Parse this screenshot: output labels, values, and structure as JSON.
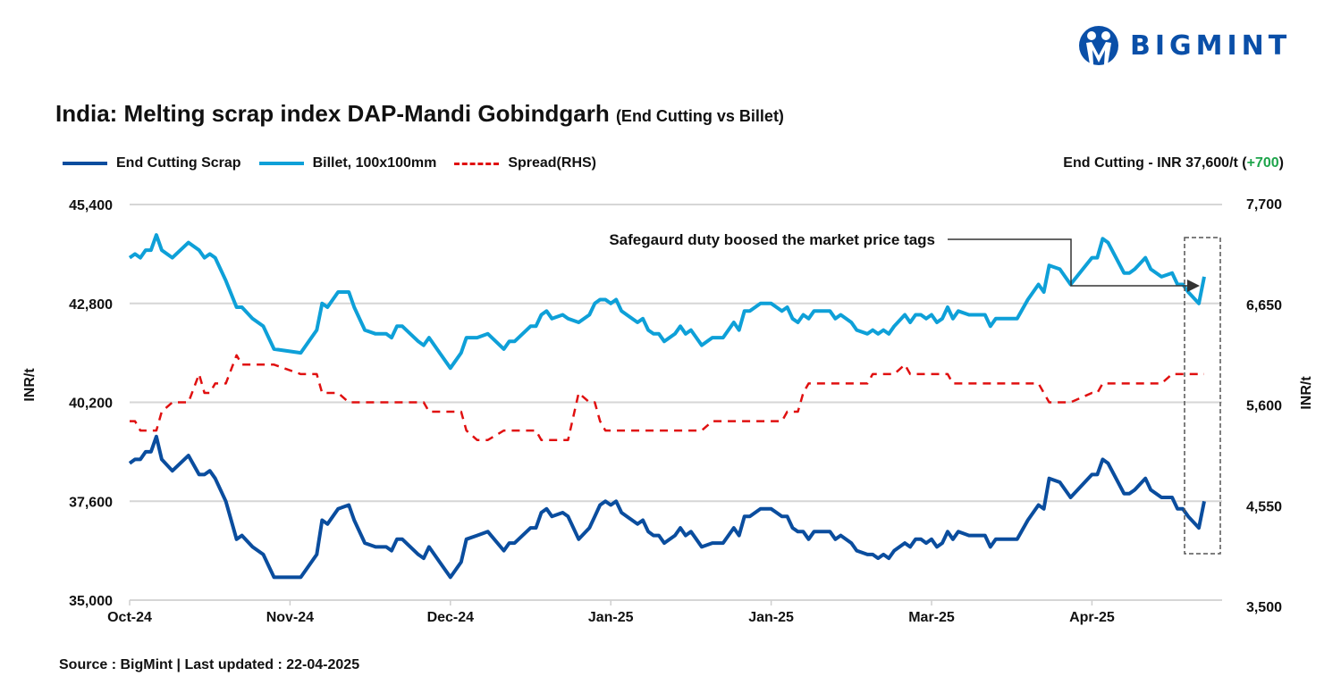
{
  "logo": {
    "text": "BIGMINT",
    "color": "#0a4fa8"
  },
  "header": {
    "title": "India: Melting scrap index DAP-Mandi Gobindgarh",
    "subtitle": "(End Cutting vs Billet)",
    "latest_prefix": "End Cutting - INR 37,600/t (",
    "latest_change": "+700",
    "latest_suffix": ")",
    "change_color": "#1ea44b"
  },
  "footer": {
    "source": "Source : BigMint | Last updated : 22-04-2025"
  },
  "chart_data": {
    "type": "line",
    "title": "India: Melting scrap index DAP-Mandi Gobindgarh (End Cutting vs Billet)",
    "ylabel": "INR/t",
    "y2label": "INR/t",
    "ylim": [
      35000,
      45400
    ],
    "y2lim": [
      3500,
      7700
    ],
    "yticks": [
      "35,000",
      "37,600",
      "40,200",
      "42,800",
      "45,400"
    ],
    "y2ticks": [
      "3,500",
      "4,550",
      "5,600",
      "6,650",
      "7,700"
    ],
    "xlim": [
      "2024-10-03",
      "2025-04-22"
    ],
    "xticks": [
      {
        "label": "Oct-24",
        "date": "2024-10-03"
      },
      {
        "label": "Nov-24",
        "date": "2024-11-02"
      },
      {
        "label": "Dec-24",
        "date": "2024-12-02"
      },
      {
        "label": "Jan-25",
        "date": "2025-01-01"
      },
      {
        "label": "Jan-25",
        "date": "2025-01-31"
      },
      {
        "label": "Mar-25",
        "date": "2025-03-02"
      },
      {
        "label": "Apr-25",
        "date": "2025-04-01"
      }
    ],
    "grid": "horizontal",
    "legend_position": "top-left",
    "series": [
      {
        "name": "End Cutting Scrap",
        "color": "#0a4d9e",
        "axis": "left",
        "style": "solid"
      },
      {
        "name": "Billet, 100x100mm",
        "color": "#0ea0d8",
        "axis": "left",
        "style": "solid"
      },
      {
        "name": "Spread(RHS)",
        "color": "#e01010",
        "axis": "right",
        "style": "dashed"
      }
    ],
    "columns": [
      "date",
      "End Cutting Scrap",
      "Billet, 100x100mm",
      "Spread(RHS)"
    ],
    "rows": [
      [
        "2024-10-03",
        38600,
        44000,
        5400
      ],
      [
        "2024-10-04",
        38700,
        44100,
        5400
      ],
      [
        "2024-10-05",
        38700,
        44000,
        5300
      ],
      [
        "2024-10-06",
        38900,
        44200,
        5300
      ],
      [
        "2024-10-07",
        38900,
        44200,
        5300
      ],
      [
        "2024-10-08",
        39300,
        44600,
        5300
      ],
      [
        "2024-10-09",
        38700,
        44200,
        5500
      ],
      [
        "2024-10-11",
        38400,
        44000,
        5600
      ],
      [
        "2024-10-14",
        38800,
        44400,
        5600
      ],
      [
        "2024-10-16",
        38300,
        44200,
        5900
      ],
      [
        "2024-10-17",
        38300,
        44000,
        5700
      ],
      [
        "2024-10-18",
        38400,
        44100,
        5700
      ],
      [
        "2024-10-19",
        38200,
        44000,
        5800
      ],
      [
        "2024-10-21",
        37600,
        43400,
        5800
      ],
      [
        "2024-10-23",
        36600,
        42700,
        6100
      ],
      [
        "2024-10-24",
        36700,
        42700,
        6000
      ],
      [
        "2024-10-26",
        36400,
        42400,
        6000
      ],
      [
        "2024-10-28",
        36200,
        42200,
        6000
      ],
      [
        "2024-10-30",
        35600,
        41600,
        6000
      ],
      [
        "2024-11-04",
        35600,
        41500,
        5900
      ],
      [
        "2024-11-07",
        36200,
        42100,
        5900
      ],
      [
        "2024-11-08",
        37100,
        42800,
        5700
      ],
      [
        "2024-11-09",
        37000,
        42700,
        5700
      ],
      [
        "2024-11-11",
        37400,
        43100,
        5700
      ],
      [
        "2024-11-13",
        37500,
        43100,
        5600
      ],
      [
        "2024-11-14",
        37100,
        42700,
        5600
      ],
      [
        "2024-11-16",
        36500,
        42100,
        5600
      ],
      [
        "2024-11-18",
        36400,
        42000,
        5600
      ],
      [
        "2024-11-20",
        36400,
        42000,
        5600
      ],
      [
        "2024-11-21",
        36300,
        41900,
        5600
      ],
      [
        "2024-11-22",
        36600,
        42200,
        5600
      ],
      [
        "2024-11-23",
        36600,
        42200,
        5600
      ],
      [
        "2024-11-26",
        36200,
        41800,
        5600
      ],
      [
        "2024-11-27",
        36100,
        41700,
        5600
      ],
      [
        "2024-11-28",
        36400,
        41900,
        5500
      ],
      [
        "2024-11-30",
        36000,
        41500,
        5500
      ],
      [
        "2024-12-02",
        35600,
        41100,
        5500
      ],
      [
        "2024-12-04",
        36000,
        41500,
        5500
      ],
      [
        "2024-12-05",
        36600,
        41900,
        5300
      ],
      [
        "2024-12-07",
        36700,
        41900,
        5200
      ],
      [
        "2024-12-09",
        36800,
        42000,
        5200
      ],
      [
        "2024-12-12",
        36300,
        41600,
        5300
      ],
      [
        "2024-12-13",
        36500,
        41800,
        5300
      ],
      [
        "2024-12-14",
        36500,
        41800,
        5300
      ],
      [
        "2024-12-17",
        36900,
        42200,
        5300
      ],
      [
        "2024-12-18",
        36900,
        42200,
        5300
      ],
      [
        "2024-12-19",
        37300,
        42500,
        5200
      ],
      [
        "2024-12-20",
        37400,
        42600,
        5200
      ],
      [
        "2024-12-21",
        37200,
        42400,
        5200
      ],
      [
        "2024-12-23",
        37300,
        42500,
        5200
      ],
      [
        "2024-12-24",
        37200,
        42400,
        5200
      ],
      [
        "2024-12-26",
        36600,
        42300,
        5700
      ],
      [
        "2024-12-28",
        36900,
        42500,
        5600
      ],
      [
        "2024-12-29",
        37200,
        42800,
        5600
      ],
      [
        "2024-12-30",
        37500,
        42900,
        5400
      ],
      [
        "2024-12-31",
        37600,
        42900,
        5300
      ],
      [
        "2025-01-01",
        37500,
        42800,
        5300
      ],
      [
        "2025-01-02",
        37600,
        42900,
        5300
      ],
      [
        "2025-01-03",
        37300,
        42600,
        5300
      ],
      [
        "2025-01-04",
        37200,
        42500,
        5300
      ],
      [
        "2025-01-06",
        37000,
        42300,
        5300
      ],
      [
        "2025-01-07",
        37100,
        42400,
        5300
      ],
      [
        "2025-01-08",
        36800,
        42100,
        5300
      ],
      [
        "2025-01-09",
        36700,
        42000,
        5300
      ],
      [
        "2025-01-10",
        36700,
        42000,
        5300
      ],
      [
        "2025-01-11",
        36500,
        41800,
        5300
      ],
      [
        "2025-01-13",
        36700,
        42000,
        5300
      ],
      [
        "2025-01-14",
        36900,
        42200,
        5300
      ],
      [
        "2025-01-15",
        36700,
        42000,
        5300
      ],
      [
        "2025-01-16",
        36800,
        42100,
        5300
      ],
      [
        "2025-01-17",
        36600,
        41900,
        5300
      ],
      [
        "2025-01-18",
        36400,
        41700,
        5300
      ],
      [
        "2025-01-20",
        36500,
        41900,
        5400
      ],
      [
        "2025-01-22",
        36500,
        41900,
        5400
      ],
      [
        "2025-01-24",
        36900,
        42300,
        5400
      ],
      [
        "2025-01-25",
        36700,
        42100,
        5400
      ],
      [
        "2025-01-26",
        37200,
        42600,
        5400
      ],
      [
        "2025-01-27",
        37200,
        42600,
        5400
      ],
      [
        "2025-01-29",
        37400,
        42800,
        5400
      ],
      [
        "2025-01-31",
        37400,
        42800,
        5400
      ],
      [
        "2025-02-01",
        37300,
        42700,
        5400
      ],
      [
        "2025-02-02",
        37200,
        42600,
        5400
      ],
      [
        "2025-02-03",
        37200,
        42700,
        5500
      ],
      [
        "2025-02-04",
        36900,
        42400,
        5500
      ],
      [
        "2025-02-05",
        36800,
        42300,
        5500
      ],
      [
        "2025-02-06",
        36800,
        42500,
        5700
      ],
      [
        "2025-02-07",
        36600,
        42400,
        5800
      ],
      [
        "2025-02-08",
        36800,
        42600,
        5800
      ],
      [
        "2025-02-11",
        36800,
        42600,
        5800
      ],
      [
        "2025-02-12",
        36600,
        42400,
        5800
      ],
      [
        "2025-02-13",
        36700,
        42500,
        5800
      ],
      [
        "2025-02-15",
        36500,
        42300,
        5800
      ],
      [
        "2025-02-16",
        36300,
        42100,
        5800
      ],
      [
        "2025-02-18",
        36200,
        42000,
        5800
      ],
      [
        "2025-02-19",
        36200,
        42100,
        5900
      ],
      [
        "2025-02-20",
        36100,
        42000,
        5900
      ],
      [
        "2025-02-21",
        36200,
        42100,
        5900
      ],
      [
        "2025-02-22",
        36100,
        42000,
        5900
      ],
      [
        "2025-02-23",
        36300,
        42200,
        5900
      ],
      [
        "2025-02-25",
        36500,
        42500,
        6000
      ],
      [
        "2025-02-26",
        36400,
        42300,
        5900
      ],
      [
        "2025-02-27",
        36600,
        42500,
        5900
      ],
      [
        "2025-02-28",
        36600,
        42500,
        5900
      ],
      [
        "2025-03-01",
        36500,
        42400,
        5900
      ],
      [
        "2025-03-02",
        36600,
        42500,
        5900
      ],
      [
        "2025-03-03",
        36400,
        42300,
        5900
      ],
      [
        "2025-03-04",
        36500,
        42400,
        5900
      ],
      [
        "2025-03-05",
        36800,
        42700,
        5900
      ],
      [
        "2025-03-06",
        36600,
        42400,
        5800
      ],
      [
        "2025-03-07",
        36800,
        42600,
        5800
      ],
      [
        "2025-03-09",
        36700,
        42500,
        5800
      ],
      [
        "2025-03-11",
        36700,
        42500,
        5800
      ],
      [
        "2025-03-12",
        36700,
        42500,
        5800
      ],
      [
        "2025-03-13",
        36400,
        42200,
        5800
      ],
      [
        "2025-03-14",
        36600,
        42400,
        5800
      ],
      [
        "2025-03-18",
        36600,
        42400,
        5800
      ],
      [
        "2025-03-20",
        37100,
        42900,
        5800
      ],
      [
        "2025-03-22",
        37500,
        43300,
        5800
      ],
      [
        "2025-03-23",
        37400,
        43100,
        5700
      ],
      [
        "2025-03-24",
        38200,
        43800,
        5600
      ],
      [
        "2025-03-26",
        38100,
        43700,
        5600
      ],
      [
        "2025-03-28",
        37700,
        43300,
        5600
      ],
      [
        "2025-04-01",
        38300,
        44000,
        5700
      ],
      [
        "2025-04-02",
        38300,
        44000,
        5700
      ],
      [
        "2025-04-03",
        38700,
        44500,
        5800
      ],
      [
        "2025-04-04",
        38600,
        44400,
        5800
      ],
      [
        "2025-04-07",
        37800,
        43600,
        5800
      ],
      [
        "2025-04-08",
        37800,
        43600,
        5800
      ],
      [
        "2025-04-09",
        37900,
        43700,
        5800
      ],
      [
        "2025-04-11",
        38200,
        44000,
        5800
      ],
      [
        "2025-04-12",
        37900,
        43700,
        5800
      ],
      [
        "2025-04-14",
        37700,
        43500,
        5800
      ],
      [
        "2025-04-16",
        37700,
        43600,
        5900
      ],
      [
        "2025-04-17",
        37400,
        43300,
        5900
      ],
      [
        "2025-04-18",
        37400,
        43300,
        5900
      ],
      [
        "2025-04-19",
        37200,
        43100,
        5900
      ],
      [
        "2025-04-21",
        36900,
        42800,
        5900
      ],
      [
        "2025-04-22",
        37600,
        43500,
        5900
      ]
    ],
    "annotations": [
      {
        "text": "Safegaurd duty boosed the market price tags",
        "points_to": "2025-04-22"
      }
    ]
  }
}
